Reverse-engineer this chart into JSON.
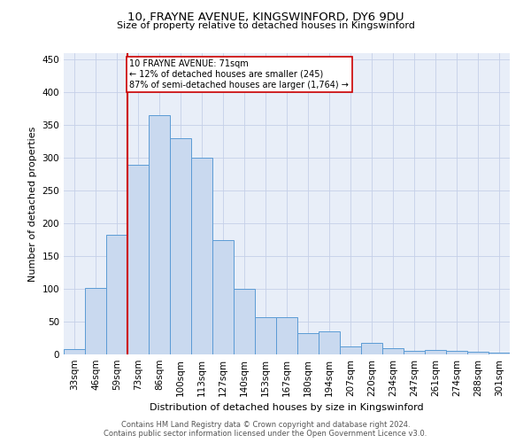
{
  "title1": "10, FRAYNE AVENUE, KINGSWINFORD, DY6 9DU",
  "title2": "Size of property relative to detached houses in Kingswinford",
  "xlabel": "Distribution of detached houses by size in Kingswinford",
  "ylabel": "Number of detached properties",
  "categories": [
    "33sqm",
    "46sqm",
    "59sqm",
    "73sqm",
    "86sqm",
    "100sqm",
    "113sqm",
    "127sqm",
    "140sqm",
    "153sqm",
    "167sqm",
    "180sqm",
    "194sqm",
    "207sqm",
    "220sqm",
    "234sqm",
    "247sqm",
    "261sqm",
    "274sqm",
    "288sqm",
    "301sqm"
  ],
  "values": [
    8,
    101,
    182,
    290,
    365,
    330,
    301,
    175,
    100,
    57,
    57,
    33,
    35,
    12,
    17,
    10,
    6,
    7,
    5,
    4,
    3
  ],
  "bar_color": "#c9d9ef",
  "bar_edge_color": "#5b9bd5",
  "bar_width": 1.0,
  "vline_x": 2.5,
  "vline_color": "#cc0000",
  "vline_linewidth": 1.5,
  "annotation_text": "10 FRAYNE AVENUE: 71sqm\n← 12% of detached houses are smaller (245)\n87% of semi-detached houses are larger (1,764) →",
  "annotation_box_color": "#ffffff",
  "annotation_box_edge_color": "#cc0000",
  "ylim": [
    0,
    460
  ],
  "yticks": [
    0,
    50,
    100,
    150,
    200,
    250,
    300,
    350,
    400,
    450
  ],
  "background_color": "#ffffff",
  "axes_bg_color": "#e8eef8",
  "grid_color": "#c5d0e8",
  "footer": "Contains HM Land Registry data © Crown copyright and database right 2024.\nContains public sector information licensed under the Open Government Licence v3.0.",
  "title1_fontsize": 9.5,
  "title2_fontsize": 8,
  "ylabel_fontsize": 8,
  "xlabel_fontsize": 8,
  "tick_fontsize": 7.5,
  "footer_fontsize": 6
}
